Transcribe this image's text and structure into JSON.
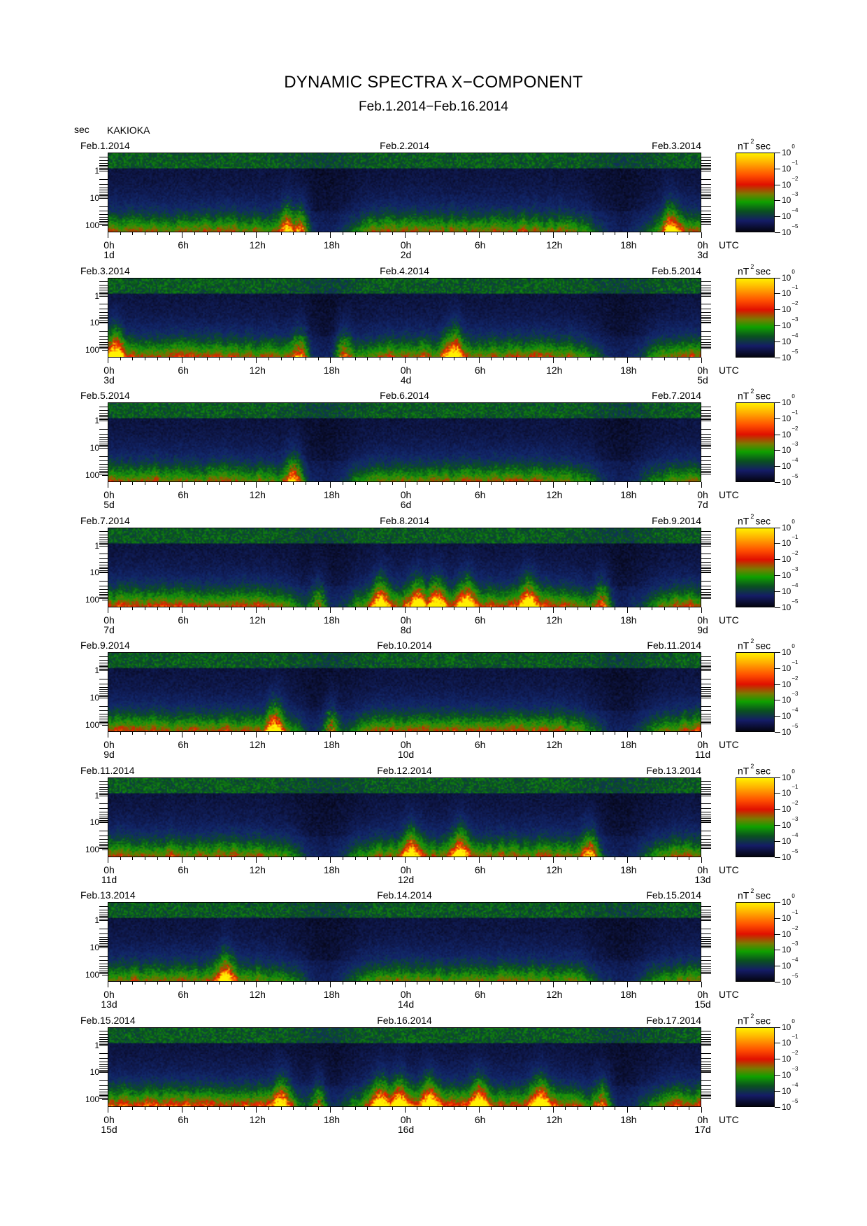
{
  "title": "DYNAMIC SPECTRA X−COMPONENT",
  "subtitle": "Feb.1.2014−Feb.16.2014",
  "y_unit": "sec",
  "station": "KAKIOKA",
  "colorbar_unit": {
    "base": "nT",
    "exp": "2",
    "suffix": "sec"
  },
  "colorbar_labels": [
    {
      "base": "10",
      "exp": "0"
    },
    {
      "base": "10",
      "exp": "−1"
    },
    {
      "base": "10",
      "exp": "−2"
    },
    {
      "base": "10",
      "exp": "−3"
    },
    {
      "base": "10",
      "exp": "−4"
    },
    {
      "base": "10",
      "exp": "−5"
    }
  ],
  "y_tick_labels": [
    "1",
    "10",
    "100"
  ],
  "x_tick_labels": [
    "0h",
    "6h",
    "12h",
    "18h",
    "0h",
    "6h",
    "12h",
    "18h",
    "0h"
  ],
  "utc_label": "UTC",
  "colors": {
    "low": "#040410",
    "mid": "#0fa000",
    "high": "#ff3000",
    "peak": "#fff000"
  },
  "chart_data": [
    {
      "type": "heatmap",
      "dates": [
        "Feb.1.2014",
        "Feb.2.2014",
        "Feb.3.2014"
      ],
      "days": [
        "1d",
        "2d",
        "3d"
      ],
      "activity": 0.35,
      "red_bursts_hours": [
        14.5,
        15.5,
        45.5
      ]
    },
    {
      "type": "heatmap",
      "dates": [
        "Feb.3.2014",
        "Feb.4.2014",
        "Feb.5.2014"
      ],
      "days": [
        "3d",
        "4d",
        "5d"
      ],
      "activity": 0.5,
      "red_bursts_hours": [
        0.5,
        15.5,
        19.0,
        28.0
      ]
    },
    {
      "type": "heatmap",
      "dates": [
        "Feb.5.2014",
        "Feb.6.2014",
        "Feb.7.2014"
      ],
      "days": [
        "5d",
        "6d",
        "7d"
      ],
      "activity": 0.3,
      "red_bursts_hours": [
        15.0
      ]
    },
    {
      "type": "heatmap",
      "dates": [
        "Feb.7.2014",
        "Feb.8.2014",
        "Feb.9.2014"
      ],
      "days": [
        "7d",
        "8d",
        "9d"
      ],
      "activity": 0.65,
      "red_bursts_hours": [
        17.0,
        22.0,
        25.0,
        26.5,
        29.0,
        34.0,
        40.0
      ]
    },
    {
      "type": "heatmap",
      "dates": [
        "Feb.9.2014",
        "Feb.10.2014",
        "Feb.11.2014"
      ],
      "days": [
        "9d",
        "10d",
        "11d"
      ],
      "activity": 0.55,
      "red_bursts_hours": [
        13.5,
        18.0
      ]
    },
    {
      "type": "heatmap",
      "dates": [
        "Feb.11.2014",
        "Feb.12.2014",
        "Feb.13.2014"
      ],
      "days": [
        "11d",
        "12d",
        "13d"
      ],
      "activity": 0.4,
      "red_bursts_hours": [
        24.5,
        28.5,
        39.0
      ]
    },
    {
      "type": "heatmap",
      "dates": [
        "Feb.13.2014",
        "Feb.14.2014",
        "Feb.15.2014"
      ],
      "days": [
        "13d",
        "14d",
        "15d"
      ],
      "activity": 0.25,
      "red_bursts_hours": [
        9.5
      ]
    },
    {
      "type": "heatmap",
      "dates": [
        "Feb.15.2014",
        "Feb.16.2014",
        "Feb.17.2014"
      ],
      "days": [
        "15d",
        "16d",
        "17d"
      ],
      "activity": 0.8,
      "red_bursts_hours": [
        14.0,
        17.0,
        22.0,
        23.5,
        26.0,
        30.0,
        35.0,
        40.0
      ]
    }
  ]
}
